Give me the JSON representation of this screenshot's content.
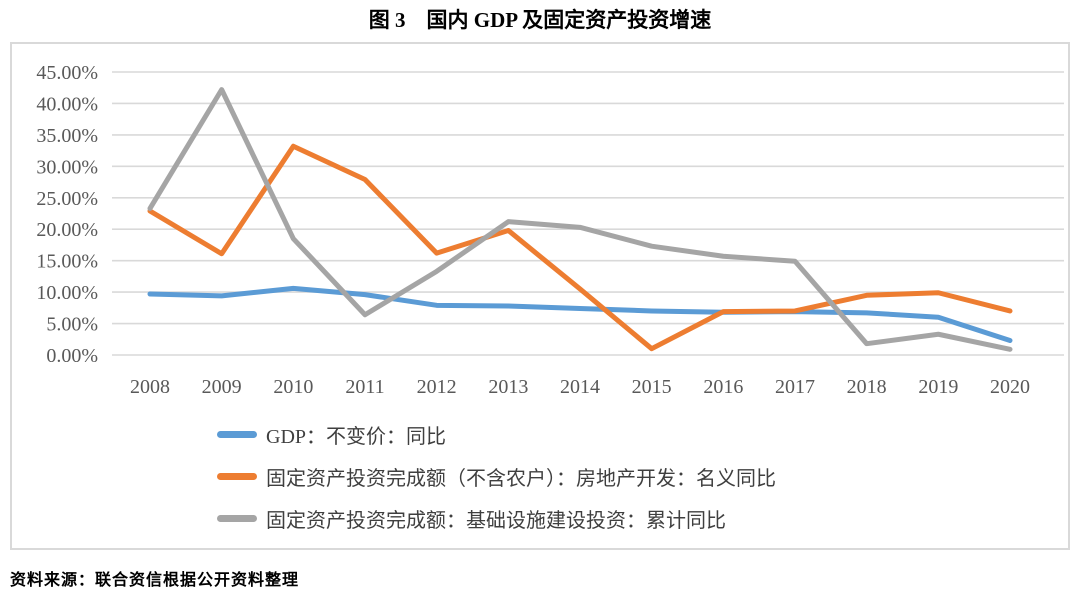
{
  "title": "图 3　国内 GDP 及固定资产投资增速",
  "source": "资料来源：联合资信根据公开资料整理",
  "colors": {
    "gdp_line": "#5B9BD5",
    "realestate_line": "#ED7D31",
    "infrastructure_line": "#A5A5A5",
    "gridline": "#D9D9D9",
    "box_border": "#D9D9D9",
    "axis_text": "#595959",
    "legend_text": "#3F3F3F"
  },
  "chart_data": {
    "type": "line",
    "title": "图 3　国内 GDP 及固定资产投资增速",
    "x": [
      "2008",
      "2009",
      "2010",
      "2011",
      "2012",
      "2013",
      "2014",
      "2015",
      "2016",
      "2017",
      "2018",
      "2019",
      "2020"
    ],
    "series": [
      {
        "name": "GDP：不变价：同比",
        "color": "#5B9BD5",
        "values": [
          9.7,
          9.4,
          10.6,
          9.6,
          7.9,
          7.8,
          7.4,
          7.0,
          6.8,
          6.9,
          6.7,
          6.0,
          2.3
        ]
      },
      {
        "name": "固定资产投资完成额（不含农户）：房地产开发：名义同比",
        "color": "#ED7D31",
        "values": [
          22.9,
          16.1,
          33.2,
          27.9,
          16.2,
          19.8,
          10.5,
          1.0,
          6.9,
          7.0,
          9.5,
          9.9,
          7.0
        ]
      },
      {
        "name": "固定资产投资完成额：基础设施建设投资：累计同比",
        "color": "#A5A5A5",
        "values": [
          23.3,
          42.2,
          18.5,
          6.4,
          13.3,
          21.2,
          20.3,
          17.3,
          15.7,
          14.9,
          1.8,
          3.3,
          0.9
        ]
      }
    ],
    "ylim": [
      0,
      45
    ],
    "y_tick_step": 5,
    "y_tick_labels": [
      "0.00%",
      "5.00%",
      "10.00%",
      "15.00%",
      "20.00%",
      "25.00%",
      "30.00%",
      "35.00%",
      "40.00%",
      "45.00%"
    ],
    "grid": true,
    "legend_position": "bottom-left",
    "ylabel": "",
    "xlabel": ""
  }
}
